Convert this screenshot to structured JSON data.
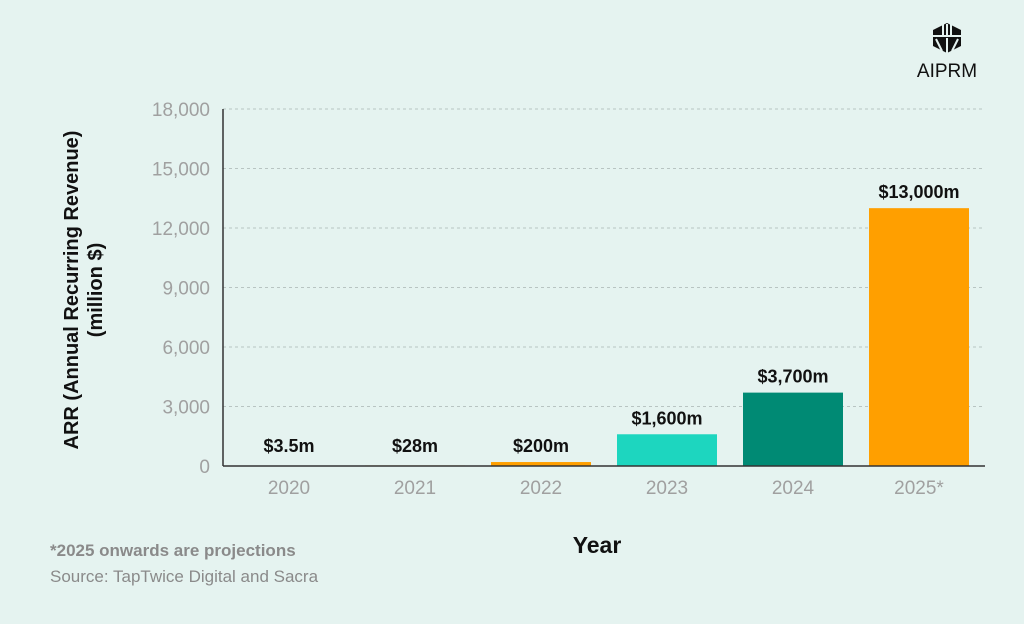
{
  "brand": {
    "logo_text": "AIPRM"
  },
  "footnote": "*2025 onwards are projections",
  "source": "Source: TapTwice Digital and Sacra",
  "chart_data": {
    "type": "bar",
    "title": "",
    "xlabel": "Year",
    "ylabel": "ARR (Annual Recurring Revenue)",
    "ylabel2": "(million $)",
    "categories": [
      "2020",
      "2021",
      "2022",
      "2023",
      "2024",
      "2025*"
    ],
    "values": [
      3.5,
      28,
      200,
      1600,
      3700,
      13000
    ],
    "data_labels": [
      "$3.5m",
      "$28m",
      "$200m",
      "$1,600m",
      "$3,700m",
      "$13,000m"
    ],
    "colors": [
      "#ff9f00",
      "#ff9f00",
      "#ff9f00",
      "#1dd6bf",
      "#008a74",
      "#ff9f00"
    ],
    "ylim": [
      0,
      18000
    ],
    "yticks": [
      0,
      3000,
      6000,
      9000,
      12000,
      15000,
      18000
    ],
    "ytick_labels": [
      "0",
      "3,000",
      "6,000",
      "9,000",
      "12,000",
      "15,000",
      "18,000"
    ],
    "grid": true,
    "legend": "none"
  }
}
